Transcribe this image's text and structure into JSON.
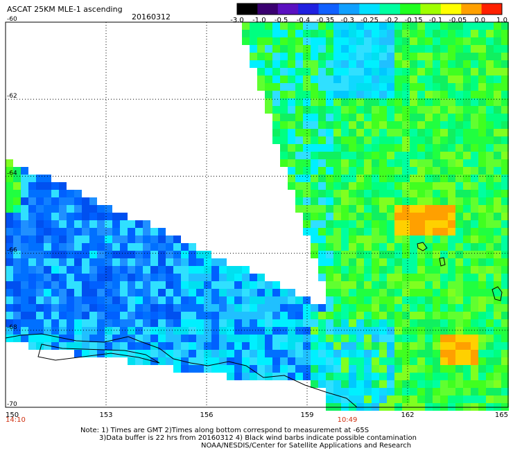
{
  "title": "ASCAT 25KM MLE-1 ascending",
  "date": "20160312",
  "colorbar": {
    "labels": [
      "-3.0",
      "-1.0",
      "-0.5",
      "-0.4",
      "-0.35",
      "-0.3",
      "-0.25",
      "-0.2",
      "-0.15",
      "-0.1",
      "-0.05",
      "0.0",
      "1.0"
    ],
    "colors": [
      "#000000",
      "#3a0070",
      "#5a10c0",
      "#2020e0",
      "#1060ff",
      "#10a0ff",
      "#00e0ff",
      "#00ffa0",
      "#20ff20",
      "#a0ff00",
      "#ffff00",
      "#ffa000",
      "#ff2000"
    ]
  },
  "axes": {
    "lon_ticks": [
      "150",
      "153",
      "156",
      "159",
      "162",
      "165"
    ],
    "lat_ticks": [
      "-60",
      "-62",
      "-64",
      "-66",
      "-68",
      "-70"
    ],
    "lon_range": [
      150,
      165
    ],
    "lat_range": [
      -70,
      -60
    ]
  },
  "time_labels": [
    {
      "text": "14:10",
      "lon": 150
    },
    {
      "text": "10:49",
      "lon": 160.2
    }
  ],
  "notes": [
    "Note: 1) Times are GMT 2)Times along bottom correspond to measurement at -65S",
    "3)Data buffer is 22 hrs from 20160312 4) Black wind barbs indicate possible contamination",
    "NOAA/NESDIS/Center for Satellite Applications and Research"
  ],
  "colors": {
    "time_label": "#d03010",
    "grid": "#000000",
    "coast": "#000000"
  }
}
